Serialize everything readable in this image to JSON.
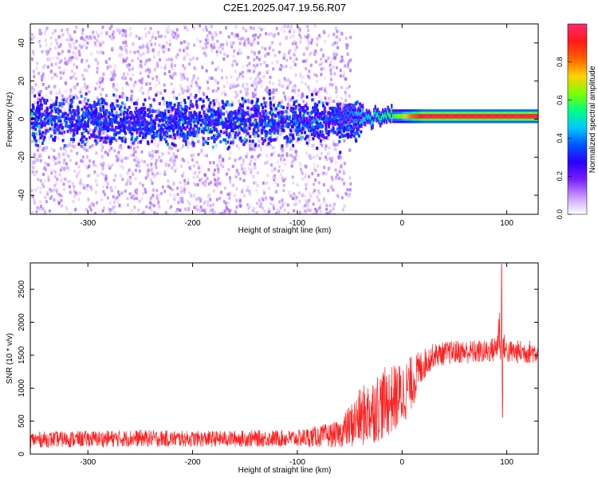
{
  "figure": {
    "title": "C2E1.2025.047.19.56.R07"
  },
  "chart_data": [
    {
      "type": "heatmap",
      "xlabel": "Height of straight line (km)",
      "ylabel": "Frequency (Hz)",
      "xlim": [
        -355,
        130
      ],
      "ylim": [
        -50,
        50
      ],
      "xticks": [
        -300,
        -200,
        -100,
        0,
        100
      ],
      "yticks": [
        -40,
        -20,
        0,
        20,
        40
      ],
      "colorbar": {
        "label": "Normalized spectral amplitude",
        "range": [
          0.0,
          1.0
        ],
        "ticks": [
          "0.0",
          "0.2",
          "0.4",
          "0.6",
          "0.8"
        ],
        "tick_values": [
          0.0,
          0.2,
          0.4,
          0.6,
          0.8
        ],
        "colormap": [
          "#ffffff",
          "#c89bff",
          "#7a1fff",
          "#2a00ff",
          "#0055ff",
          "#00c8ff",
          "#00ff80",
          "#80ff00",
          "#ffd000",
          "#ff6000",
          "#ff1a1a",
          "#ff2a70"
        ]
      },
      "description_values": {
        "line_center_hz": 1.5,
        "line_half_width_hz": 3,
        "noise_band_half_width_hz": 10,
        "transition_km": -60,
        "peak_amplitude_segment_km": [
          20,
          80
        ],
        "peak_amplitude": 0.95,
        "dispersed_noise_max_height_km": -50
      }
    },
    {
      "type": "line",
      "xlabel": "Height of straight line (km)",
      "ylabel": "SNR (10 * v/v)",
      "xlim": [
        -355,
        130
      ],
      "ylim": [
        0,
        2900
      ],
      "xticks": [
        -300,
        -200,
        -100,
        0,
        100
      ],
      "yticks": [
        0,
        500,
        1000,
        1500,
        2000,
        2500
      ],
      "color": "#ff2020",
      "profile": {
        "x": [
          -355,
          -250,
          -200,
          -100,
          -60,
          -40,
          -20,
          0,
          10,
          20,
          30,
          50,
          80,
          90,
          93,
          95,
          97,
          100,
          130
        ],
        "y": [
          220,
          240,
          230,
          240,
          300,
          550,
          750,
          900,
          1100,
          1350,
          1500,
          1550,
          1550,
          1600,
          1900,
          1400,
          1650,
          1550,
          1550
        ],
        "noise_amplitude": [
          120,
          130,
          120,
          130,
          200,
          450,
          550,
          500,
          400,
          250,
          180,
          180,
          180,
          200,
          400,
          300,
          200,
          180,
          180
        ]
      },
      "features": [
        {
          "x": 95,
          "y": 2880,
          "kind": "spike"
        },
        {
          "x": 96,
          "y": 560,
          "kind": "dip"
        }
      ]
    }
  ]
}
